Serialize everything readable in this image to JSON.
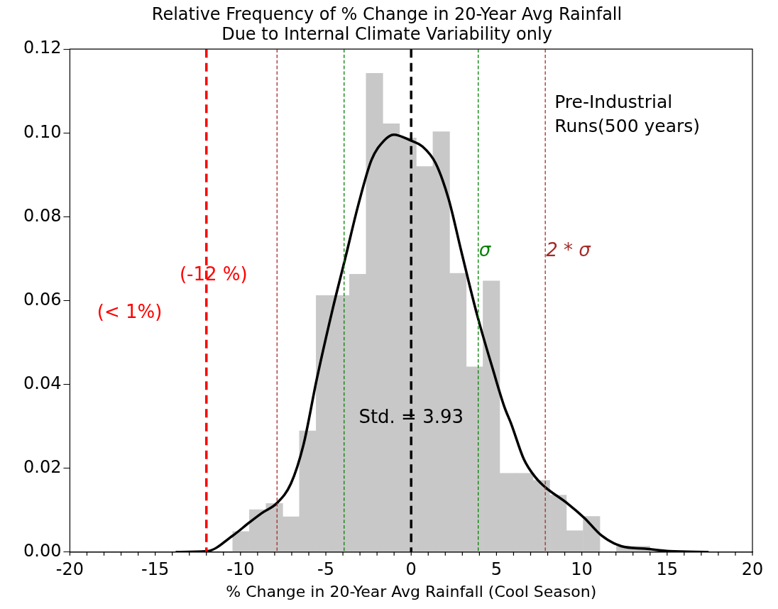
{
  "chart_data": {
    "type": "histogram",
    "title": "Relative Frequency of % Change in 20-Year Avg Rainfall\nDue to Internal Climate Variability only",
    "xlabel": "% Change in 20-Year Avg Rainfall (Cool Season)",
    "bins": [
      -10.46,
      -9.48,
      -8.5,
      -7.53,
      -6.55,
      -5.57,
      -4.59,
      -3.61,
      -2.64,
      -1.66,
      -0.68,
      0.3,
      1.28,
      2.25,
      3.23,
      4.21,
      5.19,
      6.17,
      7.14,
      8.12,
      9.1,
      10.08,
      11.06,
      12.03,
      13.01,
      13.99
    ],
    "values": [
      0.0049,
      0.0101,
      0.0116,
      0.0084,
      0.0289,
      0.0612,
      0.0612,
      0.0663,
      0.1142,
      0.1022,
      0.0988,
      0.092,
      0.1003,
      0.0665,
      0.0442,
      0.0647,
      0.0188,
      0.0188,
      0.0171,
      0.0136,
      0.0051,
      0.0085,
      0,
      0.0014,
      0.0014
    ],
    "color": "#c8c8c8",
    "series": [
      {
        "type": "line",
        "color": "#000000",
        "x": [
          -13.8,
          -11.96,
          -10.46,
          -9.5,
          -8.75,
          -7.89,
          -7.05,
          -6.31,
          -5.54,
          -4.6,
          -3.85,
          -3.1,
          -2.33,
          -1.58,
          -1.02,
          -0.08,
          0.68,
          1.43,
          2.19,
          2.93,
          3.87,
          4.81,
          5.45,
          5.88,
          6.6,
          7.29,
          7.88,
          9.16,
          10.16,
          11.14,
          12.31,
          13.72,
          15.15,
          17.43
        ],
        "values": [
          0,
          0.0002,
          0.0039,
          0.007,
          0.0093,
          0.0116,
          0.0163,
          0.0256,
          0.0411,
          0.058,
          0.0703,
          0.0828,
          0.0935,
          0.0982,
          0.0996,
          0.0983,
          0.0967,
          0.0928,
          0.0843,
          0.0719,
          0.0565,
          0.0433,
          0.0348,
          0.0304,
          0.0222,
          0.0178,
          0.0154,
          0.0116,
          0.0081,
          0.004,
          0.0014,
          0.0008,
          0.0002,
          0
        ]
      }
    ],
    "xlim": [
      -20,
      20
    ],
    "xticks": [
      -20,
      -15,
      -10,
      -5,
      0,
      5,
      10,
      15,
      20
    ],
    "ylim": [
      0,
      0.12
    ],
    "yticks": [
      {
        "value": 0,
        "label": "0.00"
      },
      {
        "value": 0.02,
        "label": "0.02"
      },
      {
        "value": 0.04,
        "label": "0.04"
      },
      {
        "value": 0.06,
        "label": "0.06"
      },
      {
        "value": 0.08,
        "label": "0.08"
      },
      {
        "value": 0.1,
        "label": "0.10"
      },
      {
        "value": 0.12,
        "label": "0.12"
      }
    ],
    "ref_lines": [
      {
        "axis": "x",
        "value": -12,
        "color": "#ff0000",
        "line_style": "dashed"
      },
      {
        "axis": "x",
        "value": -7.86,
        "color": "#a52a2a",
        "line_style": "dashed"
      },
      {
        "axis": "x",
        "value": -3.93,
        "color": "#008000",
        "line_style": "dashed"
      },
      {
        "axis": "x",
        "value": 0,
        "color": "#000000",
        "line_style": "dashed"
      },
      {
        "axis": "x",
        "value": 3.93,
        "color": "#008000",
        "line_style": "dashed",
        "label": "σ"
      },
      {
        "axis": "x",
        "value": 7.86,
        "color": "#a52a2a",
        "line_style": "dashed",
        "label": "2 * σ"
      }
    ],
    "annotations": [
      {
        "text": "(-12 %)",
        "x": -12,
        "y": 0.066
      },
      "(< 1%)",
      {
        "text": "Std. = 3.93",
        "x": 0,
        "y": 0.032
      },
      "Pre-Industrial\nRuns(500 years)"
    ],
    "grid": false,
    "legend": false
  }
}
